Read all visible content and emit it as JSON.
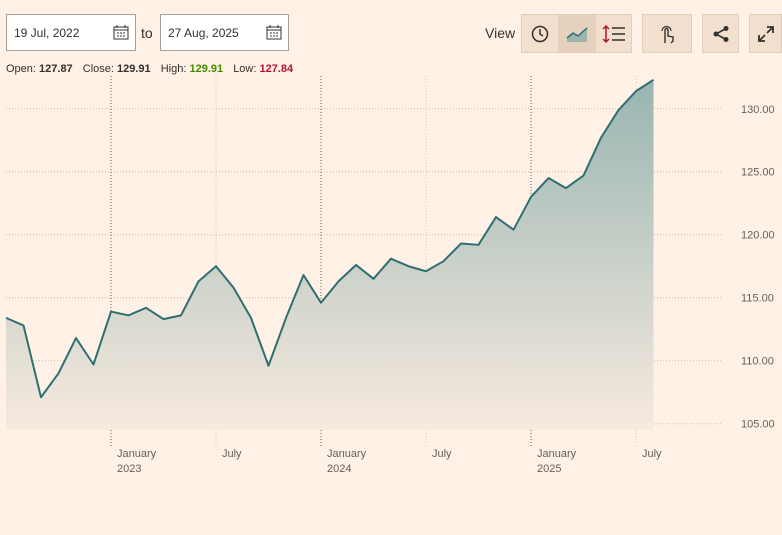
{
  "controls": {
    "from": "19 Jul, 2022",
    "to_label": "to",
    "to": "27 Aug, 2025",
    "view_label": "View"
  },
  "quote": {
    "open_label": "Open:",
    "open": 127.87,
    "close_label": "Close:",
    "close": 129.91,
    "high_label": "High:",
    "high": 129.91,
    "low_label": "Low:",
    "low": 127.84
  },
  "chart_data": {
    "type": "area",
    "x": [
      "2022-07",
      "2022-08",
      "2022-09",
      "2022-10",
      "2022-11",
      "2022-12",
      "2023-01",
      "2023-02",
      "2023-03",
      "2023-04",
      "2023-05",
      "2023-06",
      "2023-07",
      "2023-08",
      "2023-09",
      "2023-10",
      "2023-11",
      "2023-12",
      "2024-01",
      "2024-02",
      "2024-03",
      "2024-04",
      "2024-05",
      "2024-06",
      "2024-07",
      "2024-08",
      "2024-09",
      "2024-10",
      "2024-11",
      "2024-12",
      "2025-01",
      "2025-02",
      "2025-03",
      "2025-04",
      "2025-05",
      "2025-06",
      "2025-07",
      "2025-08"
    ],
    "values": [
      113.4,
      112.8,
      107.1,
      109.0,
      111.8,
      109.7,
      113.9,
      113.6,
      114.2,
      113.3,
      113.6,
      116.3,
      117.5,
      115.8,
      113.4,
      109.6,
      113.4,
      116.8,
      114.6,
      116.3,
      117.6,
      116.5,
      118.1,
      117.5,
      117.1,
      117.9,
      119.3,
      119.2,
      121.4,
      120.4,
      123.0,
      124.5,
      123.7,
      124.7,
      127.7,
      129.9,
      131.4,
      132.3
    ],
    "color": "#2f6f72",
    "xlim": [
      "2022-07",
      "2025-10"
    ],
    "xticks": [
      {
        "value": "2023-01",
        "label": "January",
        "year": "2023"
      },
      {
        "value": "2023-07",
        "label": "July"
      },
      {
        "value": "2024-01",
        "label": "January",
        "year": "2024"
      },
      {
        "value": "2024-07",
        "label": "July"
      },
      {
        "value": "2025-01",
        "label": "January",
        "year": "2025"
      },
      {
        "value": "2025-07",
        "label": "July"
      }
    ],
    "ylim": [
      104.5,
      132.6
    ],
    "yticks": [
      {
        "value": 105,
        "label": "105.00"
      },
      {
        "value": 110,
        "label": "110.00"
      },
      {
        "value": 115,
        "label": "115.00"
      },
      {
        "value": 120,
        "label": "120.00"
      },
      {
        "value": 125,
        "label": "125.00"
      },
      {
        "value": 130,
        "label": "130.00"
      }
    ],
    "grid": true
  }
}
